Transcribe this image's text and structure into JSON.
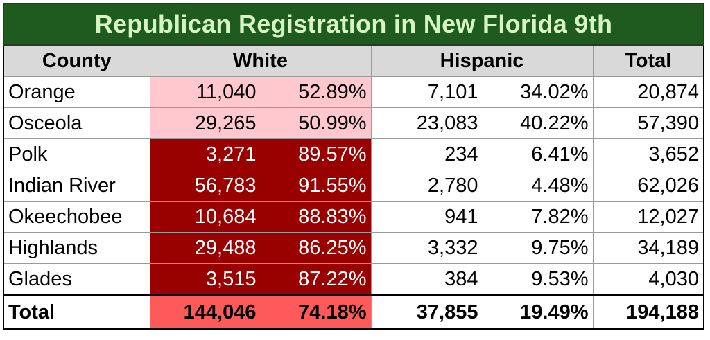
{
  "title": "Republican Registration in New Florida 9th",
  "headers": {
    "county": "County",
    "white": "White",
    "hispanic": "Hispanic",
    "total": "Total"
  },
  "rows": [
    {
      "county": "Orange",
      "white": "11,040",
      "white_pct": "52.89%",
      "hispanic": "7,101",
      "hispanic_pct": "34.02%",
      "total": "20,874",
      "shade": "light"
    },
    {
      "county": "Osceola",
      "white": "29,265",
      "white_pct": "50.99%",
      "hispanic": "23,083",
      "hispanic_pct": "40.22%",
      "total": "57,390",
      "shade": "light"
    },
    {
      "county": "Polk",
      "white": "3,271",
      "white_pct": "89.57%",
      "hispanic": "234",
      "hispanic_pct": "6.41%",
      "total": "3,652",
      "shade": "dark"
    },
    {
      "county": "Indian River",
      "white": "56,783",
      "white_pct": "91.55%",
      "hispanic": "2,780",
      "hispanic_pct": "4.48%",
      "total": "62,026",
      "shade": "dark"
    },
    {
      "county": "Okeechobee",
      "white": "10,684",
      "white_pct": "88.83%",
      "hispanic": "941",
      "hispanic_pct": "7.82%",
      "total": "12,027",
      "shade": "dark"
    },
    {
      "county": "Highlands",
      "white": "29,488",
      "white_pct": "86.25%",
      "hispanic": "3,332",
      "hispanic_pct": "9.75%",
      "total": "34,189",
      "shade": "dark"
    },
    {
      "county": "Glades",
      "white": "3,515",
      "white_pct": "87.22%",
      "hispanic": "384",
      "hispanic_pct": "9.53%",
      "total": "4,030",
      "shade": "dark"
    }
  ],
  "totals": {
    "label": "Total",
    "white": "144,046",
    "white_pct": "74.18%",
    "hispanic": "37,855",
    "hispanic_pct": "19.49%",
    "total": "194,188"
  },
  "colors": {
    "title_bg": "#1f5a1f",
    "title_text": "#d6f5c2",
    "header_bg": "#d9d9d9",
    "light_shade": "#ffc7ce",
    "dark_shade": "#990000",
    "total_highlight": "#ff5a5a"
  }
}
